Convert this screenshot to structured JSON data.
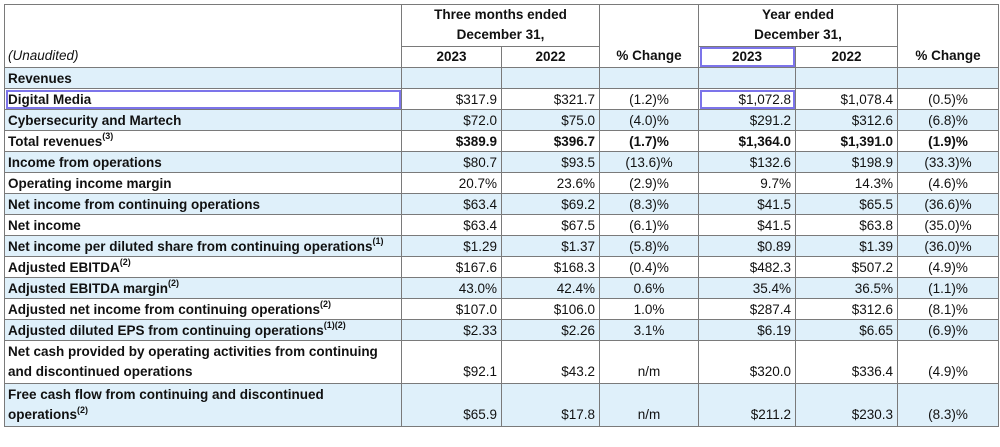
{
  "header": {
    "unaudited": "(Unaudited)",
    "three_months_line1": "Three months ended",
    "three_months_line2": "December 31,",
    "year_line1": "Year ended",
    "year_line2": "December 31,",
    "y2023_a": "2023",
    "y2022_a": "2022",
    "pct_change_a": "% Change",
    "y2023_b": "2023",
    "y2022_b": "2022",
    "pct_change_b": "% Change"
  },
  "section_revenues": "Revenues",
  "rows": [
    {
      "label": "Digital Media",
      "sup": "",
      "q2023": "$317.9",
      "q2022": "$321.7",
      "qpct": "(1.2)%",
      "y2023": "$1,072.8",
      "y2022": "$1,078.4",
      "ypct": "(0.5)%"
    },
    {
      "label": "Cybersecurity and Martech",
      "sup": "",
      "q2023": "$72.0",
      "q2022": "$75.0",
      "qpct": "(4.0)%",
      "y2023": "$291.2",
      "y2022": "$312.6",
      "ypct": "(6.8)%"
    },
    {
      "label": "Total revenues",
      "sup": "(3)",
      "q2023": "$389.9",
      "q2022": "$396.7",
      "qpct": "(1.7)%",
      "y2023": "$1,364.0",
      "y2022": "$1,391.0",
      "ypct": "(1.9)%"
    },
    {
      "label": "Income from operations",
      "sup": "",
      "q2023": "$80.7",
      "q2022": "$93.5",
      "qpct": "(13.6)%",
      "y2023": "$132.6",
      "y2022": "$198.9",
      "ypct": "(33.3)%"
    },
    {
      "label": "Operating income margin",
      "sup": "",
      "q2023": "20.7%",
      "q2022": "23.6%",
      "qpct": "(2.9)%",
      "y2023": "9.7%",
      "y2022": "14.3%",
      "ypct": "(4.6)%"
    },
    {
      "label": "Net income from continuing operations",
      "sup": "",
      "q2023": "$63.4",
      "q2022": "$69.2",
      "qpct": "(8.3)%",
      "y2023": "$41.5",
      "y2022": "$65.5",
      "ypct": "(36.6)%"
    },
    {
      "label": "Net income",
      "sup": "",
      "q2023": "$63.4",
      "q2022": "$67.5",
      "qpct": "(6.1)%",
      "y2023": "$41.5",
      "y2022": "$63.8",
      "ypct": "(35.0)%"
    },
    {
      "label": "Net income per diluted share from continuing operations",
      "sup": "(1)",
      "q2023": "$1.29",
      "q2022": "$1.37",
      "qpct": "(5.8)%",
      "y2023": "$0.89",
      "y2022": "$1.39",
      "ypct": "(36.0)%"
    },
    {
      "label": "Adjusted EBITDA",
      "sup": "(2)",
      "q2023": "$167.6",
      "q2022": "$168.3",
      "qpct": "(0.4)%",
      "y2023": "$482.3",
      "y2022": "$507.2",
      "ypct": "(4.9)%"
    },
    {
      "label": "Adjusted EBITDA margin",
      "sup": "(2)",
      "q2023": "43.0%",
      "q2022": "42.4%",
      "qpct": "0.6%",
      "y2023": "35.4%",
      "y2022": "36.5%",
      "ypct": "(1.1)%"
    },
    {
      "label": "Adjusted net income from continuing operations",
      "sup": "(2)",
      "q2023": "$107.0",
      "q2022": "$106.0",
      "qpct": "1.0%",
      "y2023": "$287.4",
      "y2022": "$312.6",
      "ypct": "(8.1)%"
    },
    {
      "label": "Adjusted diluted EPS from continuing operations",
      "sup": "(1)(2)",
      "q2023": "$2.33",
      "q2022": "$2.26",
      "qpct": "3.1%",
      "y2023": "$6.19",
      "y2022": "$6.65",
      "ypct": "(6.9)%"
    }
  ],
  "tall_rows": [
    {
      "line1": "Net cash provided by operating activities from continuing",
      "line2": "and discontinued operations",
      "sup": "",
      "q2023": "$92.1",
      "q2022": "$43.2",
      "qpct": "n/m",
      "y2023": "$320.0",
      "y2022": "$336.4",
      "ypct": "(4.9)%"
    },
    {
      "line1": "Free cash flow from continuing and discontinued",
      "line2": "operations",
      "sup": "(2)",
      "q2023": "$65.9",
      "q2022": "$17.8",
      "qpct": "n/m",
      "y2023": "$211.2",
      "y2022": "$230.3",
      "ypct": "(8.3)%"
    }
  ],
  "highlight_color": "#7c74ea",
  "row_blue": "#dff0fa"
}
